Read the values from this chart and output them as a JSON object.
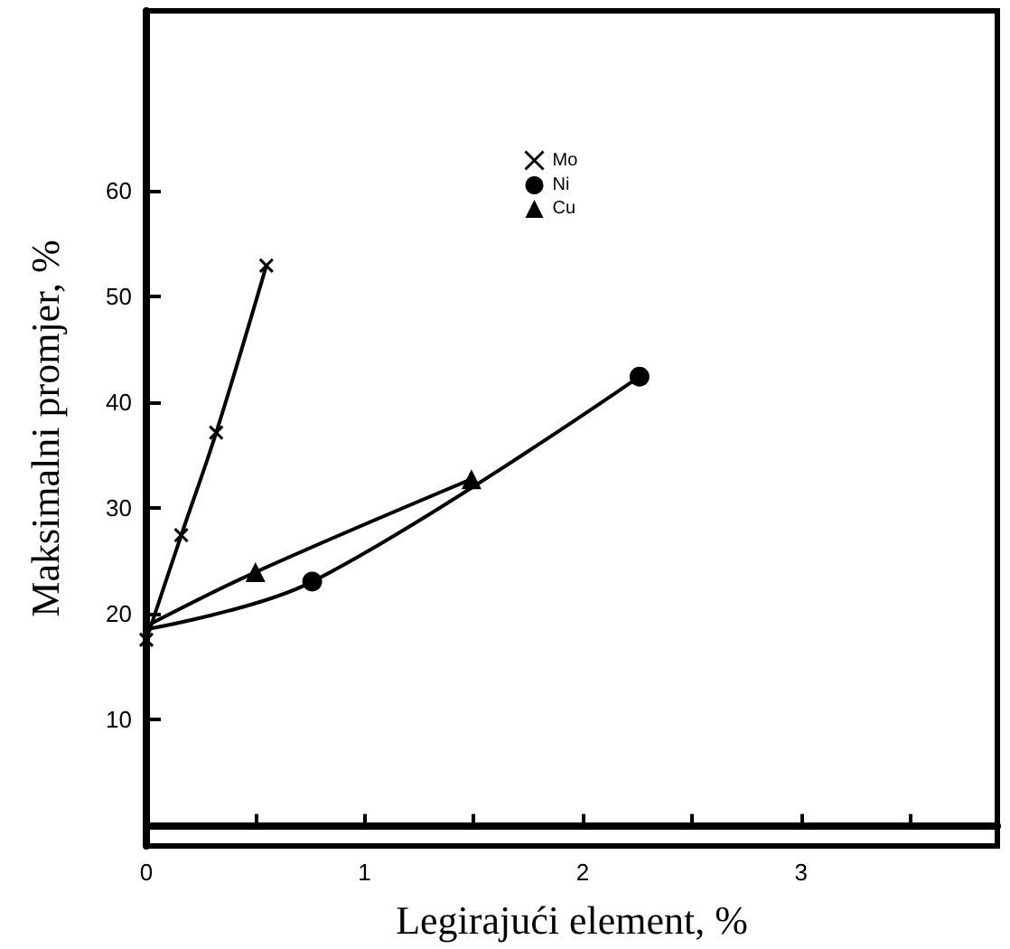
{
  "chart_data": {
    "type": "line",
    "xlabel": "Legirajući element, %",
    "ylabel": "Maksimalni promjer, %",
    "xlim": [
      0,
      3.9
    ],
    "xticks": [
      0,
      {
        "value": 0.5,
        "label": null
      },
      1,
      {
        "value": 1.5,
        "label": null
      },
      2,
      {
        "value": 2.5,
        "label": null
      },
      3,
      {
        "value": 3.5,
        "label": null
      }
    ],
    "ylim": [
      -2,
      77
    ],
    "yticks": [
      10,
      20,
      30,
      40,
      50,
      60
    ],
    "grid": false,
    "legend": "top",
    "line_style": "solid",
    "series": [
      {
        "name": "Mo",
        "color": "#000000",
        "marker": "cross",
        "x": [
          0,
          0.16,
          0.32,
          0.55
        ],
        "values": [
          17.5,
          27.4,
          37.1,
          52.9
        ]
      },
      {
        "name": "Ni",
        "color": "#000000",
        "marker": "circle",
        "x": [
          0,
          0.76,
          2.26
        ],
        "values": [
          18.5,
          23,
          42.4
        ]
      },
      {
        "name": "Cu",
        "color": "#000000",
        "marker": "triangle",
        "x": [
          0,
          0.5,
          1.49
        ],
        "values": [
          18.8,
          23.9,
          32.7
        ]
      }
    ]
  }
}
